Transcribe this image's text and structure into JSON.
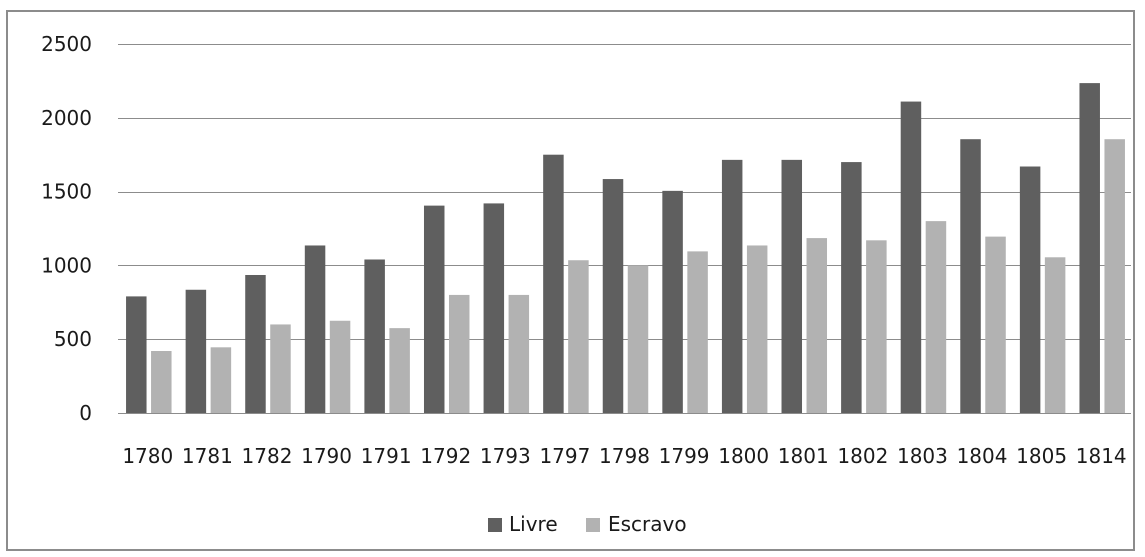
{
  "chart_data": {
    "type": "bar",
    "title": "",
    "xlabel": "",
    "ylabel": "",
    "ylim": [
      0,
      2500
    ],
    "yticks": [
      0,
      500,
      1000,
      1500,
      2000,
      2500
    ],
    "grid": true,
    "legend_position": "bottom",
    "categories": [
      "1780",
      "1781",
      "1782",
      "1790",
      "1791",
      "1792",
      "1793",
      "1797",
      "1798",
      "1799",
      "1800",
      "1801",
      "1802",
      "1803",
      "1804",
      "1805",
      "1814"
    ],
    "series": [
      {
        "name": "Livre",
        "color": "#5f5f5f",
        "values": [
          790,
          835,
          935,
          1135,
          1040,
          1405,
          1420,
          1750,
          1585,
          1505,
          1715,
          1715,
          1700,
          2110,
          1855,
          1670,
          2235
        ]
      },
      {
        "name": "Escravo",
        "color": "#b2b2b2",
        "values": [
          420,
          445,
          600,
          625,
          575,
          800,
          800,
          1035,
          1000,
          1095,
          1135,
          1185,
          1170,
          1300,
          1195,
          1055,
          1855
        ]
      }
    ]
  }
}
